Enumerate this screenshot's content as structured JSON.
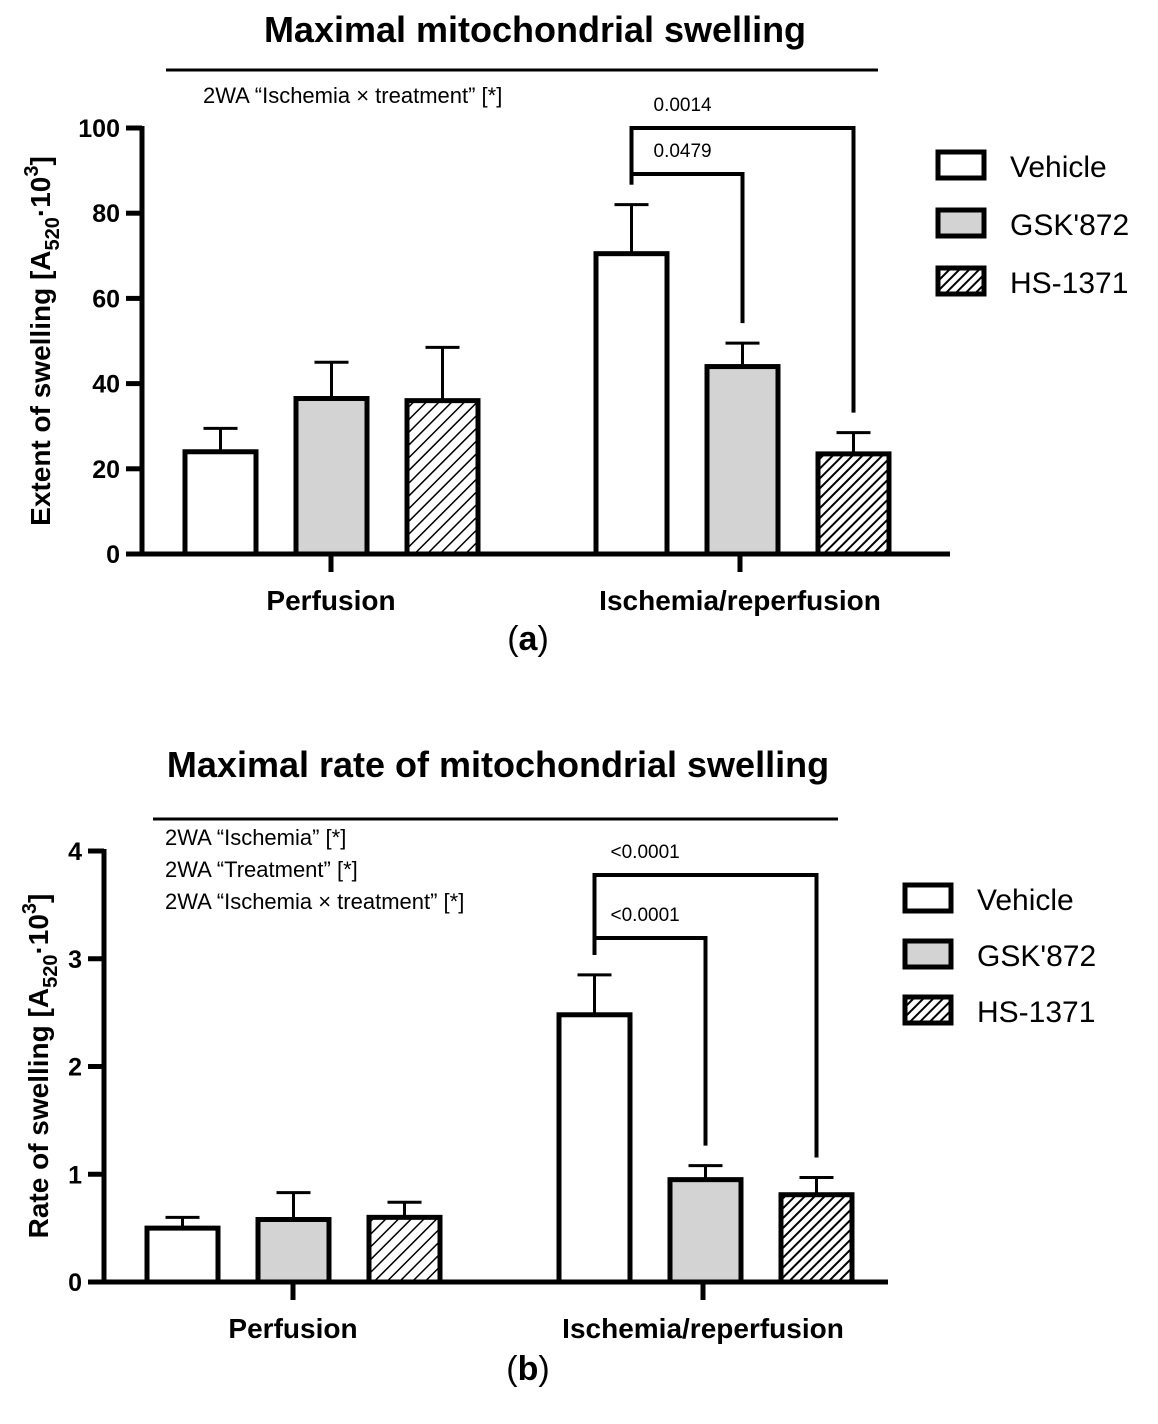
{
  "colors": {
    "vehicle": "#ffffff",
    "gsk": "#d3d3d3",
    "hs_stripe": "#000000",
    "hs_bg": "#ffffff",
    "axis": "#000000"
  },
  "chart_data": [
    {
      "type": "bar",
      "panel_label": "a",
      "title": "Maximal mitochondrial swelling",
      "xlabel": "",
      "ylabel": "Extent of swelling [A520·10³]",
      "ylabel_parts": {
        "main": "Extent of swelling [A",
        "sub": "520",
        "mid": "·10",
        "sup": "3",
        "end": "]"
      },
      "ylim": [
        0,
        100
      ],
      "yticks": [
        "0",
        "20",
        "40",
        "60",
        "80",
        "100"
      ],
      "ytick_values": [
        0,
        20,
        40,
        60,
        80,
        100
      ],
      "categories": [
        "Perfusion",
        "Ischemia/reperfusion"
      ],
      "series": [
        {
          "name": "Vehicle",
          "values": [
            24,
            70.5
          ],
          "errors": [
            5.5,
            11.5
          ]
        },
        {
          "name": "GSK'872",
          "values": [
            36.5,
            44
          ],
          "errors": [
            8.5,
            5.5
          ]
        },
        {
          "name": "HS-1371",
          "values": [
            36,
            23.5
          ],
          "errors": [
            12.5,
            5
          ]
        }
      ],
      "stats_text": [
        "2WA “Ischemia × treatment” [*]"
      ],
      "comparisons": [
        {
          "from_series": 0,
          "to_series": 1,
          "category": 1,
          "label": "0.0479"
        },
        {
          "from_series": 0,
          "to_series": 2,
          "category": 1,
          "label": "0.0014"
        }
      ],
      "legend": [
        "Vehicle",
        "GSK'872",
        "HS-1371"
      ],
      "legend_position": "right"
    },
    {
      "type": "bar",
      "panel_label": "b",
      "title": "Maximal rate of mitochondrial swelling",
      "xlabel": "",
      "ylabel": "Rate of swelling [A520·10³]",
      "ylabel_parts": {
        "main": "Rate of swelling [A",
        "sub": "520",
        "mid": "·10",
        "sup": "3",
        "end": "]"
      },
      "ylim": [
        0,
        4
      ],
      "yticks": [
        "0",
        "1",
        "2",
        "3",
        "4"
      ],
      "ytick_values": [
        0,
        1,
        2,
        3,
        4
      ],
      "categories": [
        "Perfusion",
        "Ischemia/reperfusion"
      ],
      "series": [
        {
          "name": "Vehicle",
          "values": [
            0.5,
            2.48
          ],
          "errors": [
            0.1,
            0.37
          ]
        },
        {
          "name": "GSK'872",
          "values": [
            0.58,
            0.95
          ],
          "errors": [
            0.25,
            0.13
          ]
        },
        {
          "name": "HS-1371",
          "values": [
            0.6,
            0.81
          ],
          "errors": [
            0.14,
            0.16
          ]
        }
      ],
      "stats_text": [
        "2WA “Ischemia” [*]",
        "2WA “Treatment” [*]",
        "2WA “Ischemia × treatment” [*]"
      ],
      "comparisons": [
        {
          "from_series": 0,
          "to_series": 1,
          "category": 1,
          "label": "<0.0001"
        },
        {
          "from_series": 0,
          "to_series": 2,
          "category": 1,
          "label": "<0.0001"
        }
      ],
      "legend": [
        "Vehicle",
        "GSK'872",
        "HS-1371"
      ],
      "legend_position": "right"
    }
  ]
}
